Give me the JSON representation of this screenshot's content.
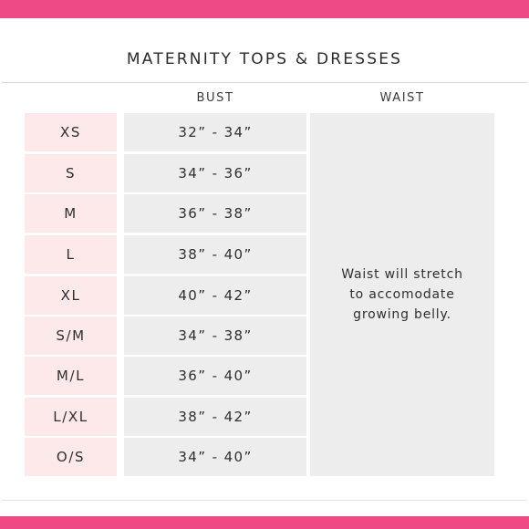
{
  "chart": {
    "title": "MATERNITY TOPS & DRESSES",
    "columns": {
      "bust": "BUST",
      "waist": "WAIST"
    },
    "rows": [
      {
        "size": "XS",
        "bust": "32” - 34”"
      },
      {
        "size": "S",
        "bust": "34” - 36”"
      },
      {
        "size": "M",
        "bust": "36” - 38”"
      },
      {
        "size": "L",
        "bust": "38” - 40”"
      },
      {
        "size": "XL",
        "bust": "40” - 42”"
      },
      {
        "size": "S/M",
        "bust": "34” - 38”"
      },
      {
        "size": "M/L",
        "bust": "36” - 40”"
      },
      {
        "size": "L/XL",
        "bust": "38” - 42”"
      },
      {
        "size": "O/S",
        "bust": "34” - 40”"
      }
    ],
    "waist_note": "Waist will stretch\nto accomodate\ngrowing belly."
  },
  "colors": {
    "brand_pink": "#ee4b86",
    "size_cell_bg": "#fde8ea",
    "value_cell_bg": "#ededed",
    "text": "#2f2f2f"
  }
}
